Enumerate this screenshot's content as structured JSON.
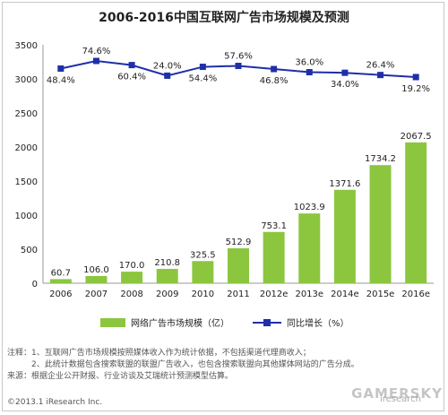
{
  "chart_data": {
    "type": "bar+line",
    "title": "2006-2016中国互联网广告市场规模及预测",
    "categories": [
      "2006",
      "2007",
      "2008",
      "2009",
      "2010",
      "2011",
      "2012e",
      "2013e",
      "2014e",
      "2015e",
      "2016e"
    ],
    "series": [
      {
        "name": "网络广告市场规模（亿）",
        "type": "bar",
        "color": "#8cc63f",
        "values": [
          60.7,
          106.0,
          170.0,
          210.8,
          325.5,
          512.9,
          753.1,
          1023.9,
          1371.6,
          1734.2,
          2067.5
        ],
        "value_labels": [
          "60.7",
          "106.0",
          "170.0",
          "210.8",
          "325.5",
          "512.9",
          "753.1",
          "1023.9",
          "1371.6",
          "1734.2",
          "2067.5"
        ]
      },
      {
        "name": "同比增长（%）",
        "type": "line",
        "color": "#1f2fa8",
        "values": [
          48.4,
          74.6,
          60.4,
          24.0,
          54.4,
          57.6,
          46.8,
          36.0,
          34.0,
          26.4,
          19.2
        ],
        "value_labels": [
          "48.4%",
          "74.6%",
          "60.4%",
          "24.0%",
          "54.4%",
          "57.6%",
          "46.8%",
          "36.0%",
          "34.0%",
          "26.4%",
          "19.2%"
        ]
      }
    ],
    "yticks": [
      "0",
      "500",
      "1000",
      "1500",
      "2000",
      "2500",
      "3000",
      "3500"
    ],
    "ylim": [
      0,
      3500
    ],
    "grid": false,
    "legend_position": "bottom"
  },
  "notes": [
    "注释：1、互联网广告市场规模按照媒体收入作为统计依据，不包括渠道代理商收入；",
    "　　　2、此统计数据包含搜索联盟的联盟广告收入，也包含搜索联盟向其他媒体网站的广告分成。",
    "来源：根据企业公开财报、行业访谈及艾瑞统计预测模型估算。"
  ],
  "copyright": "©2013.1 iResearch Inc.",
  "watermark_logo": "iresearch",
  "watermark": "GAMERSKY"
}
